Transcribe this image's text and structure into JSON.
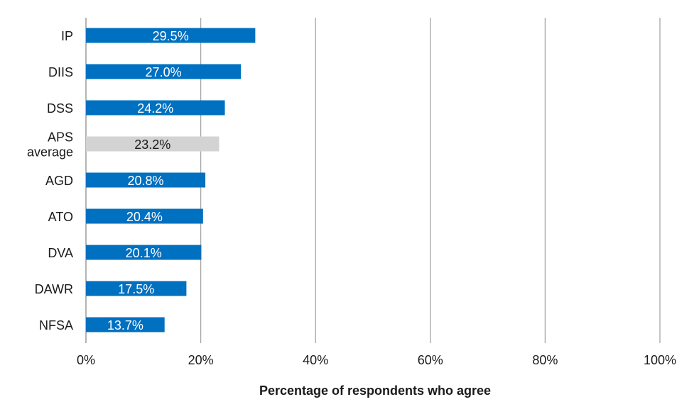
{
  "chart_data": {
    "type": "bar",
    "orientation": "horizontal",
    "title": "",
    "xlabel": "Percentage of respondents who agree",
    "ylabel": "",
    "xlim": [
      0,
      100
    ],
    "x_ticks": [
      0,
      20,
      40,
      60,
      80,
      100
    ],
    "x_tick_labels": [
      "0%",
      "20%",
      "40%",
      "60%",
      "80%",
      "100%"
    ],
    "grid": "vertical",
    "legend": "none",
    "categories": [
      [
        "IP"
      ],
      [
        "DIIS"
      ],
      [
        "DSS"
      ],
      [
        "APS",
        "average"
      ],
      [
        "AGD"
      ],
      [
        "ATO"
      ],
      [
        "DVA"
      ],
      [
        "DAWR"
      ],
      [
        "NFSA"
      ]
    ],
    "values": [
      29.5,
      27.0,
      24.2,
      23.2,
      20.8,
      20.4,
      20.1,
      17.5,
      13.7
    ],
    "value_labels": [
      "29.5%",
      "27.0%",
      "24.2%",
      "23.2%",
      "20.8%",
      "20.4%",
      "20.1%",
      "17.5%",
      "13.7%"
    ],
    "highlight_index": 3,
    "colors": {
      "bar": "#0070c0",
      "highlight_bar": "#d3d3d3",
      "bar_label": "#ffffff",
      "highlight_label": "#1a1a1a",
      "grid": "#a6a6a6"
    }
  }
}
